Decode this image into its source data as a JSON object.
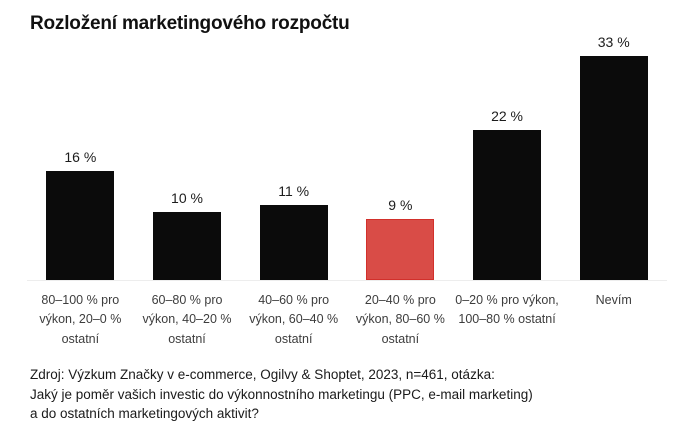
{
  "title": "Rozložení marketingového rozpočtu",
  "source": "Zdroj: Výzkum Značky v e-commerce, Ogilvy & Shoptet, 2023, n=461, otázka:\nJaký je poměr vašich investic do výkonnostního marketingu (PPC, e-mail marketing)\na do ostatních marketingových aktivit?",
  "colors": {
    "bar": "#0b0b0b",
    "highlight": "#d94c47",
    "highlight-border": "#d2302b",
    "baseline": "#ededed",
    "text": "#111111",
    "label": "#3d3d3d"
  },
  "chart_data": {
    "type": "bar",
    "title": "Rozložení marketingového rozpočtu",
    "categories": [
      "80–100 % pro\nvýkon, 20–0 %\nostatní",
      "60–80 % pro\nvýkon, 40–20 %\nostatní",
      "40–60 % pro\nvýkon, 60–40 %\nostatní",
      "20–40 % pro\nvýkon, 80–60 %\nostatní",
      "0–20 % pro výkon,\n100–80 % ostatní",
      "Nevím"
    ],
    "values": [
      16,
      10,
      11,
      9,
      22,
      33
    ],
    "value_labels": [
      "16 %",
      "10 %",
      "11 %",
      "9 %",
      "22 %",
      "33 %"
    ],
    "highlight_index": 3,
    "xlabel": "",
    "ylabel": "",
    "ylim": [
      0,
      35
    ],
    "grid": false,
    "legend": false,
    "source": "Zdroj: Výzkum Značky v e-commerce, Ogilvy & Shoptet, 2023, n=461, otázka: Jaký je poměr vašich investic do výkonnostního marketingu (PPC, e-mail marketing) a do ostatních marketingových aktivit?"
  }
}
